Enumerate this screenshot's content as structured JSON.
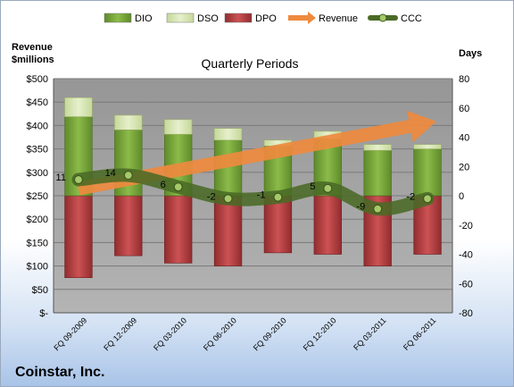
{
  "chart_data": {
    "type": "bar",
    "title": "Quarterly Periods",
    "company": "Coinstar, Inc.",
    "y_left_label": [
      "Revenue",
      "$millions"
    ],
    "y_right_label": "Days",
    "y_left_ticks": [
      "$-",
      "$50",
      "$100",
      "$150",
      "$200",
      "$250",
      "$300",
      "$350",
      "$400",
      "$450",
      "$500"
    ],
    "y_right_ticks": [
      "-80",
      "-60",
      "-40",
      "-20",
      "0",
      "20",
      "40",
      "60",
      "80"
    ],
    "ylim_left": [
      0,
      500
    ],
    "ylim_right": [
      -80,
      80
    ],
    "categories": [
      "FQ 09-2009",
      "FQ 12-2009",
      "FQ 03-2010",
      "FQ 06-2010",
      "FQ 09-2010",
      "FQ 12-2010",
      "FQ 03-2011",
      "FQ 06-2011"
    ],
    "legend": [
      "DIO",
      "DSO",
      "DPO",
      "Revenue",
      "CCC"
    ],
    "legend_position": "top",
    "series": [
      {
        "name": "DIO",
        "axis": "right",
        "values": [
          54,
          45,
          42,
          38,
          34,
          39,
          31,
          32
        ],
        "color": "#77a23c"
      },
      {
        "name": "DSO",
        "axis": "right",
        "values": [
          13,
          10,
          10,
          8,
          4,
          5,
          4,
          3
        ],
        "color": "#d7e4b2"
      },
      {
        "name": "DPO",
        "axis": "right",
        "values": [
          -56,
          -41,
          -46,
          -48,
          -39,
          -40,
          -48,
          -40
        ],
        "color": "#b2393b"
      },
      {
        "name": "Revenue",
        "axis": "left",
        "values": [
          265,
          295,
          318,
          338,
          365,
          375,
          390,
          405
        ],
        "color": "#ee8a3e"
      },
      {
        "name": "CCC",
        "axis": "right",
        "values": [
          11,
          14,
          6,
          -2,
          -1,
          5,
          -9,
          -2
        ],
        "color": "#4a6a26"
      }
    ],
    "ccc_labels": [
      "11",
      "14",
      "6",
      "-2",
      "-1",
      "5",
      "-9",
      "-2"
    ],
    "grid": true
  }
}
